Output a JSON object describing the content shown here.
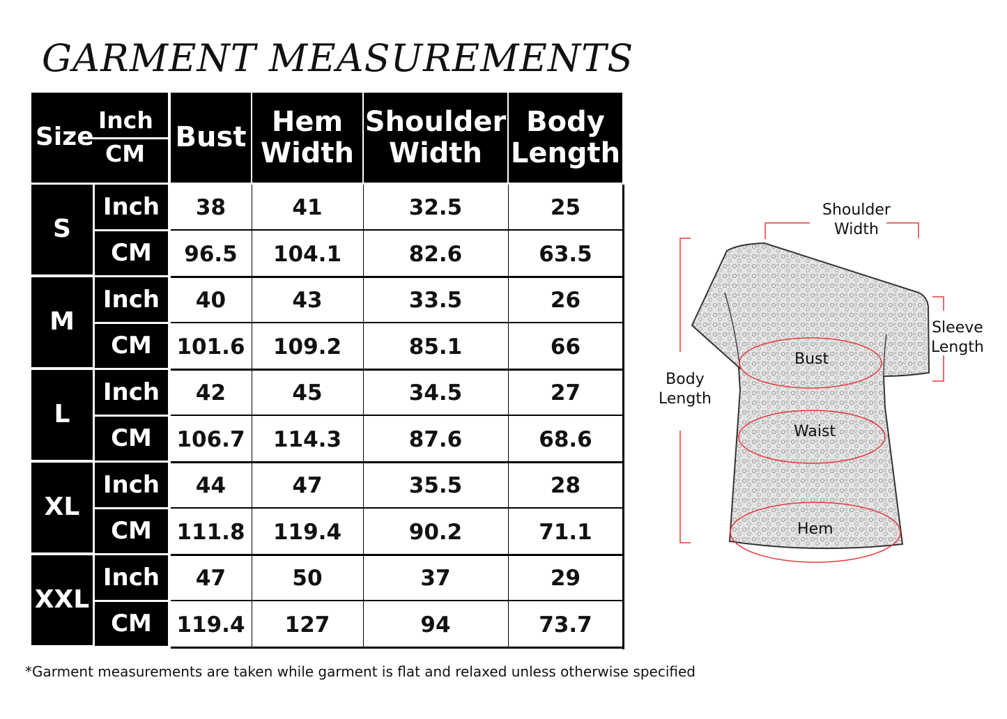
{
  "title": "GARMENT MEASUREMENTS",
  "table": {
    "corner": {
      "size": "Size",
      "inch": "Inch",
      "cm": "CM"
    },
    "columns": [
      "Bust",
      "Hem\nWidth",
      "Shoulder\nWidth",
      "Body\nLength"
    ],
    "units": [
      "Inch",
      "CM"
    ],
    "rows": [
      {
        "size": "S",
        "inch": [
          "38",
          "41",
          "32.5",
          "25"
        ],
        "cm": [
          "96.5",
          "104.1",
          "82.6",
          "63.5"
        ]
      },
      {
        "size": "M",
        "inch": [
          "40",
          "43",
          "33.5",
          "26"
        ],
        "cm": [
          "101.6",
          "109.2",
          "85.1",
          "66"
        ]
      },
      {
        "size": "L",
        "inch": [
          "42",
          "45",
          "34.5",
          "27"
        ],
        "cm": [
          "106.7",
          "114.3",
          "87.6",
          "68.6"
        ]
      },
      {
        "size": "XL",
        "inch": [
          "44",
          "47",
          "35.5",
          "28"
        ],
        "cm": [
          "111.8",
          "119.4",
          "90.2",
          "71.1"
        ]
      },
      {
        "size": "XXL",
        "inch": [
          "47",
          "50",
          "37",
          "29"
        ],
        "cm": [
          "119.4",
          "127",
          "94",
          "73.7"
        ]
      }
    ]
  },
  "footnote": "*Garment measurements are taken while garment is flat and relaxed unless otherwise specified",
  "diagram": {
    "shoulder_width": "Shoulder\nWidth",
    "sleeve_length": "Sleeve\nLength",
    "body_length": "Body\nLength",
    "bust": "Bust",
    "waist": "Waist",
    "hem": "Hem",
    "accent_color": "#e8383d"
  }
}
